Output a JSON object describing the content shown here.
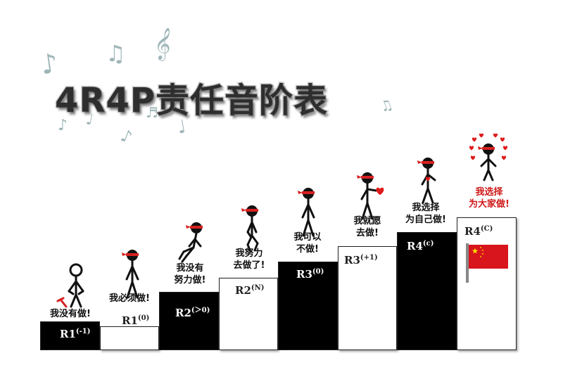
{
  "title": "4R4P责任音阶表",
  "colors": {
    "step_black": "#000000",
    "step_white": "#ffffff",
    "headband": "#d82020",
    "heart": "#e01a1a",
    "highlight_caption": "#d01818",
    "flag_red": "#d8141c",
    "flag_star": "#ffde00",
    "music_note": "#9fb5b8"
  },
  "decorations": {
    "music_notes": [
      "♪",
      "♫",
      "𝄞",
      "♪",
      "♩",
      "♪",
      "♬",
      "♩",
      "♫"
    ]
  },
  "steps": [
    {
      "level": "R1",
      "superscript": "(-1)",
      "caption_lines": [
        "我没有做!"
      ],
      "color": "black",
      "figure": "standing-with-tool-icon"
    },
    {
      "level": "R1",
      "superscript": "(0)",
      "caption_lines": [
        "我必须做!"
      ],
      "color": "white",
      "figure": "standing-icon"
    },
    {
      "level": "R2",
      "superscript": "(＞0)",
      "caption_lines": [
        "我没有",
        "努力做!"
      ],
      "color": "black",
      "figure": "sitting-icon"
    },
    {
      "level": "R2",
      "superscript": "(N)",
      "caption_lines": [
        "我努力",
        "去做了!"
      ],
      "color": "white",
      "figure": "walking-icon"
    },
    {
      "level": "R3",
      "superscript": "(0)",
      "caption_lines": [
        "我可以",
        "不做!"
      ],
      "color": "black",
      "figure": "standing-icon"
    },
    {
      "level": "R3",
      "superscript": "(+1)",
      "caption_lines": [
        "我就愿",
        "去做!"
      ],
      "color": "white",
      "figure": "holding-heart-icon"
    },
    {
      "level": "R4",
      "superscript": "(c)",
      "caption_lines": [
        "我选择",
        "为自己做!"
      ],
      "color": "black",
      "figure": "heart-chest-icon"
    },
    {
      "level": "R4",
      "superscript": "(C)",
      "caption_lines": [
        "我选择",
        "为大家做!"
      ],
      "color": "white",
      "figure": "surrounded-by-hearts-icon",
      "highlight": true,
      "flag": "china-flag-icon"
    }
  ]
}
